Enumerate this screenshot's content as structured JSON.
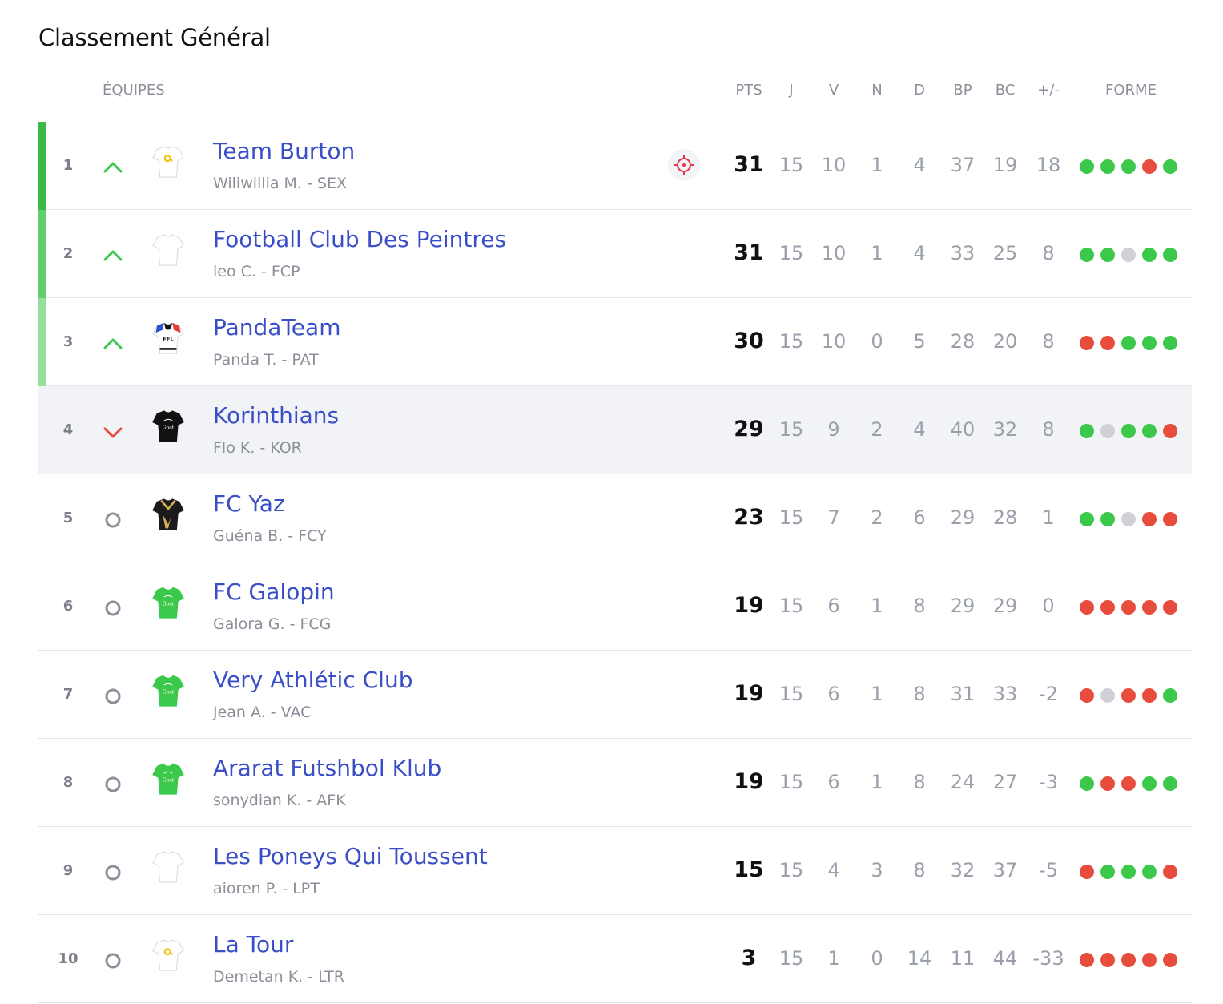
{
  "title": "Classement Général",
  "columns": {
    "team": "ÉQUIPES",
    "pts": "PTS",
    "j": "J",
    "v": "V",
    "n": "N",
    "d": "D",
    "bp": "BP",
    "bc": "BC",
    "diff": "+/-",
    "form": "FORME"
  },
  "colors": {
    "win": "#3cc84a",
    "loss": "#e74c3c",
    "draw": "#cfd1d6",
    "link": "#3a4fc7",
    "bar1": "#3cba45",
    "bar2": "#62cf6a",
    "bar3": "#96df9b"
  },
  "rows": [
    {
      "rank": "1",
      "trend": "up",
      "jersey": "white-yellow",
      "name": "Team Burton",
      "sub": "Wiliwillia M. - SEX",
      "target": true,
      "pts": "31",
      "j": "15",
      "v": "10",
      "n": "1",
      "d": "4",
      "bp": "37",
      "bc": "19",
      "diff": "18",
      "form": [
        "W",
        "W",
        "W",
        "L",
        "W"
      ]
    },
    {
      "rank": "2",
      "trend": "up",
      "jersey": "white",
      "name": "Football Club Des Peintres",
      "sub": "leo C. - FCP",
      "pts": "31",
      "j": "15",
      "v": "10",
      "n": "1",
      "d": "4",
      "bp": "33",
      "bc": "25",
      "diff": "8",
      "form": [
        "W",
        "W",
        "D",
        "W",
        "W"
      ]
    },
    {
      "rank": "3",
      "trend": "up",
      "jersey": "ffl",
      "name": "PandaTeam",
      "sub": "Panda T. - PAT",
      "pts": "30",
      "j": "15",
      "v": "10",
      "n": "0",
      "d": "5",
      "bp": "28",
      "bc": "20",
      "diff": "8",
      "form": [
        "L",
        "L",
        "W",
        "W",
        "W"
      ]
    },
    {
      "rank": "4",
      "trend": "down",
      "jersey": "black-goat",
      "name": "Korinthians",
      "sub": "Flo K. - KOR",
      "highlight": true,
      "pts": "29",
      "j": "15",
      "v": "9",
      "n": "2",
      "d": "4",
      "bp": "40",
      "bc": "32",
      "diff": "8",
      "form": [
        "W",
        "D",
        "W",
        "W",
        "L"
      ]
    },
    {
      "rank": "5",
      "trend": "same",
      "jersey": "black-gold",
      "name": "FC Yaz",
      "sub": "Guéna B. - FCY",
      "pts": "23",
      "j": "15",
      "v": "7",
      "n": "2",
      "d": "6",
      "bp": "29",
      "bc": "28",
      "diff": "1",
      "form": [
        "W",
        "W",
        "D",
        "L",
        "L"
      ]
    },
    {
      "rank": "6",
      "trend": "same",
      "jersey": "green-goat",
      "name": "FC Galopin",
      "sub": "Galora G. - FCG",
      "pts": "19",
      "j": "15",
      "v": "6",
      "n": "1",
      "d": "8",
      "bp": "29",
      "bc": "29",
      "diff": "0",
      "form": [
        "L",
        "L",
        "L",
        "L",
        "L"
      ]
    },
    {
      "rank": "7",
      "trend": "same",
      "jersey": "green-goat",
      "name": "Very Athlétic Club",
      "sub": "Jean A. - VAC",
      "pts": "19",
      "j": "15",
      "v": "6",
      "n": "1",
      "d": "8",
      "bp": "31",
      "bc": "33",
      "diff": "-2",
      "form": [
        "L",
        "D",
        "L",
        "L",
        "W"
      ]
    },
    {
      "rank": "8",
      "trend": "same",
      "jersey": "green-goat",
      "name": "Ararat Futshbol Klub",
      "sub": "sonydian K. - AFK",
      "pts": "19",
      "j": "15",
      "v": "6",
      "n": "1",
      "d": "8",
      "bp": "24",
      "bc": "27",
      "diff": "-3",
      "form": [
        "W",
        "L",
        "L",
        "W",
        "W"
      ]
    },
    {
      "rank": "9",
      "trend": "same",
      "jersey": "white",
      "name": "Les Poneys Qui Toussent",
      "sub": "aioren P. - LPT",
      "pts": "15",
      "j": "15",
      "v": "4",
      "n": "3",
      "d": "8",
      "bp": "32",
      "bc": "37",
      "diff": "-5",
      "form": [
        "L",
        "W",
        "W",
        "W",
        "L"
      ]
    },
    {
      "rank": "10",
      "trend": "same",
      "jersey": "white-yellow",
      "name": "La Tour",
      "sub": "Demetan K. - LTR",
      "pts": "3",
      "j": "15",
      "v": "1",
      "n": "0",
      "d": "14",
      "bp": "11",
      "bc": "44",
      "diff": "-33",
      "form": [
        "L",
        "L",
        "L",
        "L",
        "L"
      ]
    }
  ]
}
